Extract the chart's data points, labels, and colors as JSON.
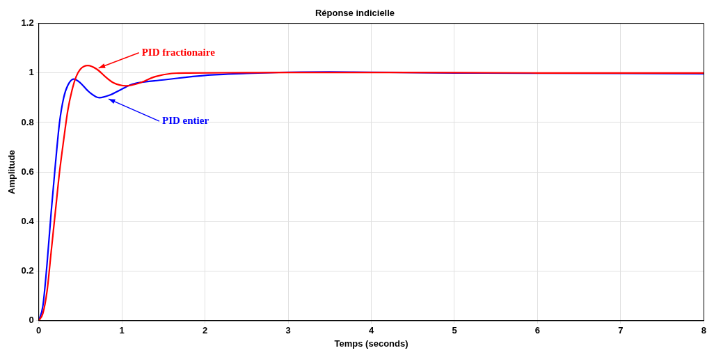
{
  "chart_data": {
    "type": "line",
    "title": "Réponse indicielle",
    "xlabel": "Temps (seconds)",
    "ylabel": "Amplitude",
    "xlim": [
      0,
      8
    ],
    "xticks": [
      0,
      1,
      2,
      3,
      4,
      5,
      6,
      7,
      8
    ],
    "ylim": [
      0,
      1.2
    ],
    "yticks": [
      0,
      0.2,
      0.4,
      0.6,
      0.8,
      1,
      1.2
    ],
    "grid": true,
    "legend": false,
    "marker": "none",
    "line_style": "solid",
    "series": [
      {
        "color": "#ff0000",
        "x": [
          0,
          0.05,
          0.1,
          0.15,
          0.2,
          0.25,
          0.3,
          0.35,
          0.4,
          0.45,
          0.5,
          0.59,
          0.7,
          0.8,
          0.9,
          1.05,
          1.2,
          1.4,
          1.6,
          1.8,
          2.5,
          3,
          4,
          5,
          6,
          8
        ],
        "values": [
          0,
          0.03,
          0.12,
          0.28,
          0.44,
          0.6,
          0.73,
          0.85,
          0.93,
          0.985,
          1.015,
          1.03,
          1.015,
          0.985,
          0.96,
          0.948,
          0.958,
          0.985,
          0.998,
          1,
          1.001,
          1.002,
          1.002,
          1.001,
          1,
          1
        ]
      },
      {
        "color": "#0000ff",
        "x": [
          0,
          0.05,
          0.1,
          0.15,
          0.2,
          0.25,
          0.3,
          0.35,
          0.42,
          0.5,
          0.6,
          0.73,
          0.85,
          1,
          1.13,
          1.5,
          2,
          2.5,
          3,
          3.5,
          4,
          5,
          6,
          7,
          8
        ],
        "values": [
          0,
          0.06,
          0.23,
          0.44,
          0.63,
          0.8,
          0.9,
          0.95,
          0.975,
          0.96,
          0.925,
          0.9,
          0.91,
          0.935,
          0.955,
          0.972,
          0.99,
          0.998,
          1.003,
          1.004,
          1.003,
          1,
          0.999,
          0.998,
          0.997
        ]
      }
    ],
    "annotations": [
      {
        "text": "PID fractionaire",
        "x": 0.72,
        "y": 1.02
      },
      {
        "text": "PID entier",
        "x": 0.84,
        "y": 0.895
      }
    ]
  }
}
